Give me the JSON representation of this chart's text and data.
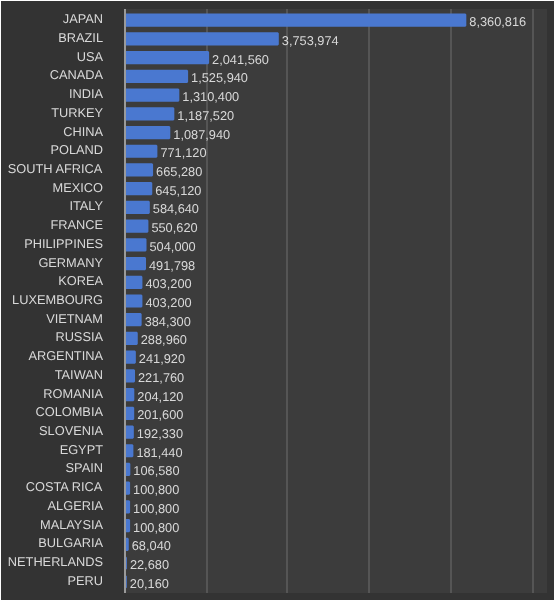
{
  "chart_data": {
    "type": "bar",
    "orientation": "horizontal",
    "grid": "x",
    "color": "#4a78d0",
    "categories": [
      "JAPAN",
      "BRAZIL",
      "USA",
      "CANADA",
      "INDIA",
      "TURKEY",
      "CHINA",
      "POLAND",
      "SOUTH AFRICA",
      "MEXICO",
      "ITALY",
      "FRANCE",
      "PHILIPPINES",
      "GERMANY",
      "KOREA",
      "LUXEMBOURG",
      "VIETNAM",
      "RUSSIA",
      "ARGENTINA",
      "TAIWAN",
      "ROMANIA",
      "COLOMBIA",
      "SLOVENIA",
      "EGYPT",
      "SPAIN",
      "COSTA RICA",
      "ALGERIA",
      "MALAYSIA",
      "BULGARIA",
      "NETHERLANDS",
      "PERU"
    ],
    "values": [
      8360816,
      3753974,
      2041560,
      1525940,
      1310400,
      1187520,
      1087940,
      771120,
      665280,
      645120,
      584640,
      550620,
      504000,
      491798,
      403200,
      403200,
      384300,
      288960,
      241920,
      221760,
      204120,
      201600,
      192330,
      181440,
      106580,
      100800,
      100800,
      100800,
      68040,
      22680,
      20160
    ],
    "value_labels": [
      "8,360,816",
      "3,753,974",
      "2,041,560",
      "1,525,940",
      "1,310,400",
      "1,187,520",
      "1,087,940",
      "771,120",
      "665,280",
      "645,120",
      "584,640",
      "550,620",
      "504,000",
      "491,798",
      "403,200",
      "403,200",
      "384,300",
      "288,960",
      "241,920",
      "221,760",
      "204,120",
      "201,600",
      "192,330",
      "181,440",
      "106,580",
      "100,800",
      "100,800",
      "100,800",
      "68,040",
      "22,680",
      "20,160"
    ]
  }
}
